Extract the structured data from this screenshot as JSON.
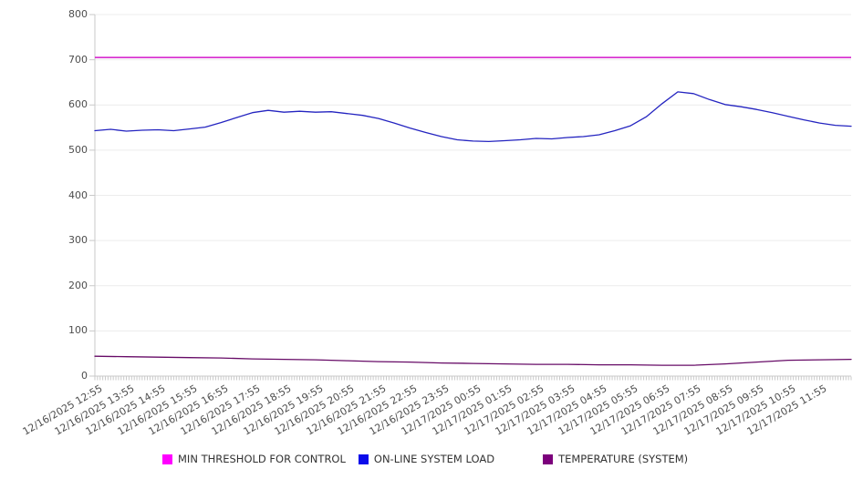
{
  "page": {
    "background": "#ffffff",
    "grid_color": "#ececec",
    "axis_color": "#c9c9c9",
    "tick_label_color": "#4d4d4d",
    "legend_text_color": "#333333"
  },
  "axes": {
    "y_tick_labels": [
      "0",
      "100",
      "200",
      "300",
      "400",
      "500",
      "600",
      "700",
      "800"
    ],
    "x_tick_labels": [
      "12/16/2025 12:55",
      "12/16/2025 13:55",
      "12/16/2025 14:55",
      "12/16/2025 15:55",
      "12/16/2025 16:55",
      "12/16/2025 17:55",
      "12/16/2025 18:55",
      "12/16/2025 19:55",
      "12/16/2025 20:55",
      "12/16/2025 21:55",
      "12/16/2025 22:55",
      "12/16/2025 23:55",
      "12/17/2025 00:55",
      "12/17/2025 01:55",
      "12/17/2025 02:55",
      "12/17/2025 03:55",
      "12/17/2025 04:55",
      "12/17/2025 05:55",
      "12/17/2025 06:55",
      "12/17/2025 07:55",
      "12/17/2025 08:55",
      "12/17/2025 09:55",
      "12/17/2025 10:55",
      "12/17/2025 11:55"
    ]
  },
  "chart_data": {
    "type": "line",
    "title": "",
    "xlabel": "",
    "ylabel": "",
    "ylim": [
      0,
      800
    ],
    "y_grid_interval": 100,
    "grid": "horizontal",
    "legend_position": "bottom",
    "x_unit": "hours since 12/16/2025 12:55",
    "xlim_hours": [
      0,
      24
    ],
    "x_minor_tick_minutes": 5,
    "x_major_labels_hourly": true,
    "series": [
      {
        "name": "MIN THRESHOLD FOR CONTROL",
        "type": "threshold-hline",
        "value": 705,
        "color": "#d316c9",
        "legend_color": "#ff00ff"
      },
      {
        "name": "ON-LINE SYSTEM LOAD",
        "type": "line",
        "color": "#2424c0",
        "legend_color": "#0b0bea",
        "x_hours": [
          0,
          0.5,
          1,
          1.5,
          2,
          2.5,
          3,
          3.5,
          4,
          4.5,
          5,
          5.5,
          6,
          6.5,
          7,
          7.5,
          8,
          8.5,
          9,
          9.5,
          10,
          10.5,
          11,
          11.5,
          12,
          12.5,
          13,
          13.5,
          14,
          14.5,
          15,
          15.5,
          16,
          16.5,
          17,
          17.5,
          18,
          18.5,
          19,
          19.5,
          20,
          20.5,
          21,
          21.5,
          22,
          22.5,
          23,
          23.5,
          24
        ],
        "values": [
          543,
          546,
          542,
          544,
          545,
          543,
          547,
          551,
          561,
          572,
          583,
          588,
          584,
          586,
          584,
          585,
          581,
          577,
          570,
          560,
          549,
          539,
          530,
          523,
          520,
          519,
          521,
          523,
          526,
          525,
          528,
          530,
          534,
          543,
          554,
          574,
          603,
          629,
          625,
          612,
          601,
          596,
          590,
          583,
          575,
          567,
          560,
          555,
          553
        ]
      },
      {
        "name": "TEMPERATURE (SYSTEM)",
        "type": "line",
        "color": "#670b67",
        "legend_color": "#7c007c",
        "x_hours": [
          0,
          1,
          2,
          3,
          4,
          5,
          6,
          7,
          8,
          9,
          10,
          11,
          12,
          13,
          14,
          15,
          16,
          17,
          18,
          19,
          20,
          21,
          22,
          23,
          24
        ],
        "values": [
          44,
          43,
          42,
          41,
          40,
          38,
          37,
          36,
          34,
          32,
          31,
          29,
          28,
          27,
          26,
          26,
          25,
          25,
          24,
          24,
          27,
          31,
          35,
          36,
          37
        ]
      }
    ]
  }
}
